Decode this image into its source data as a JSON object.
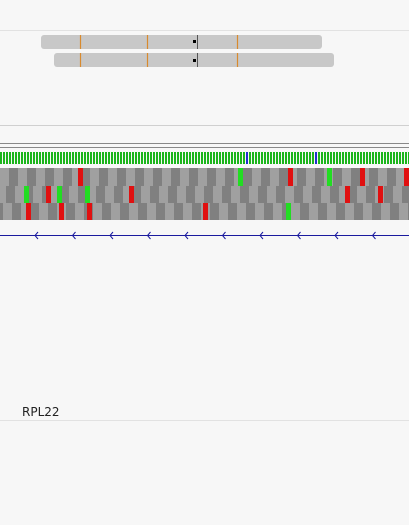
{
  "gene": {
    "label": "RPL22"
  }
}
